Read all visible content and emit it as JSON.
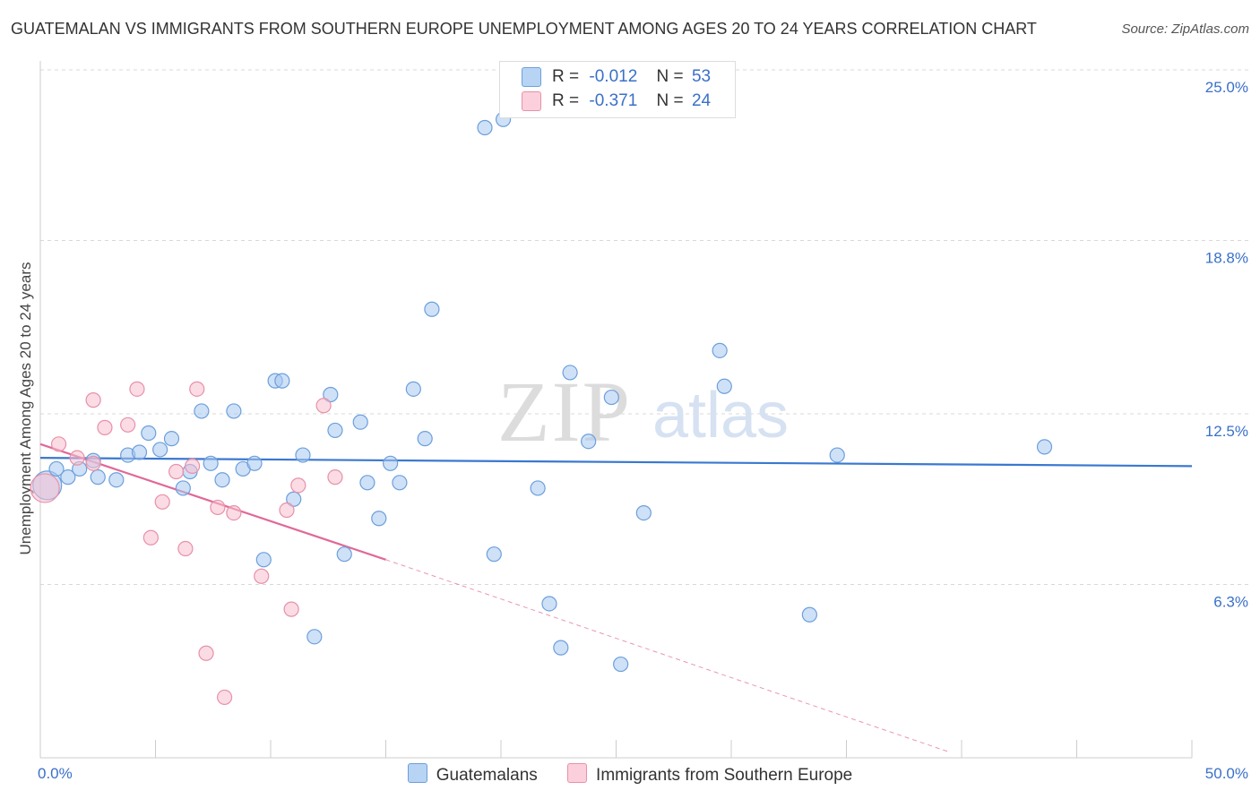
{
  "title": "GUATEMALAN VS IMMIGRANTS FROM SOUTHERN EUROPE UNEMPLOYMENT AMONG AGES 20 TO 24 YEARS CORRELATION CHART",
  "source": "Source: ZipAtlas.com",
  "watermark": {
    "zip": "ZIP",
    "atlas": "atlas"
  },
  "legend": {
    "rows": [
      {
        "r_label": "R =",
        "r_value": "-0.012",
        "n_label": "N =",
        "n_value": "53"
      },
      {
        "r_label": "R =",
        "r_value": "-0.371",
        "n_label": "N =",
        "n_value": "24"
      }
    ]
  },
  "chart_data": {
    "type": "scatter",
    "title": "GUATEMALAN VS IMMIGRANTS FROM SOUTHERN EUROPE UNEMPLOYMENT AMONG AGES 20 TO 24 YEARS CORRELATION CHART",
    "xlabel": "",
    "ylabel": "Unemployment Among Ages 20 to 24 years",
    "xlim": [
      0,
      50
    ],
    "ylim": [
      0,
      25
    ],
    "x_tick_labels": [
      "0.0%",
      "50.0%"
    ],
    "y_ticks": [
      6.3,
      12.5,
      18.8,
      25.0
    ],
    "y_tick_labels": [
      "6.3%",
      "12.5%",
      "18.8%",
      "25.0%"
    ],
    "grid": true,
    "legend_position": "bottom",
    "series": [
      {
        "name": "Guatemalans",
        "color": "#a8c8f0",
        "edge_color": "#6c9fdc",
        "line_color": "#3a78d0",
        "trend": {
          "x": [
            0,
            50
          ],
          "y": [
            10.9,
            10.6
          ],
          "style": "solid"
        },
        "points": [
          [
            0.3,
            9.9
          ],
          [
            0.7,
            10.5
          ],
          [
            1.2,
            10.2
          ],
          [
            1.7,
            10.5
          ],
          [
            2.3,
            10.8
          ],
          [
            2.5,
            10.2
          ],
          [
            3.3,
            10.1
          ],
          [
            3.8,
            11.0
          ],
          [
            4.3,
            11.1
          ],
          [
            4.7,
            11.8
          ],
          [
            5.2,
            11.2
          ],
          [
            5.7,
            11.6
          ],
          [
            6.2,
            9.8
          ],
          [
            6.5,
            10.4
          ],
          [
            7.0,
            12.6
          ],
          [
            7.4,
            10.7
          ],
          [
            7.9,
            10.1
          ],
          [
            8.4,
            12.6
          ],
          [
            8.8,
            10.5
          ],
          [
            9.3,
            10.7
          ],
          [
            9.7,
            7.2
          ],
          [
            10.2,
            13.7
          ],
          [
            10.5,
            13.7
          ],
          [
            11.0,
            9.4
          ],
          [
            11.4,
            11.0
          ],
          [
            11.9,
            4.4
          ],
          [
            12.6,
            13.2
          ],
          [
            12.8,
            11.9
          ],
          [
            13.2,
            7.4
          ],
          [
            13.9,
            12.2
          ],
          [
            14.2,
            10.0
          ],
          [
            14.7,
            8.7
          ],
          [
            15.2,
            10.7
          ],
          [
            15.6,
            10.0
          ],
          [
            16.2,
            13.4
          ],
          [
            16.7,
            11.6
          ],
          [
            17.0,
            16.3
          ],
          [
            19.3,
            22.9
          ],
          [
            19.7,
            7.4
          ],
          [
            20.1,
            23.2
          ],
          [
            21.6,
            9.8
          ],
          [
            22.1,
            5.6
          ],
          [
            22.6,
            4.0
          ],
          [
            23.0,
            14.0
          ],
          [
            23.8,
            11.5
          ],
          [
            24.8,
            13.1
          ],
          [
            25.2,
            3.4
          ],
          [
            26.2,
            8.9
          ],
          [
            29.5,
            14.8
          ],
          [
            29.7,
            13.5
          ],
          [
            33.4,
            5.2
          ],
          [
            34.6,
            11.0
          ],
          [
            43.6,
            11.3
          ]
        ]
      },
      {
        "name": "Immigrants from Southern Europe",
        "color": "#f8c0d0",
        "edge_color": "#e890a8",
        "line_color": "#e06898",
        "trend": {
          "x": [
            0,
            15
          ],
          "y": [
            11.4,
            7.2
          ],
          "style": "solid",
          "extended_x": [
            15,
            39.5
          ],
          "extended_y": [
            7.2,
            0.2
          ],
          "extended_style": "dashed"
        },
        "points": [
          [
            0.2,
            9.8
          ],
          [
            0.8,
            11.4
          ],
          [
            1.6,
            10.9
          ],
          [
            2.3,
            10.7
          ],
          [
            2.3,
            13.0
          ],
          [
            2.8,
            12.0
          ],
          [
            3.8,
            12.1
          ],
          [
            4.2,
            13.4
          ],
          [
            4.8,
            8.0
          ],
          [
            5.3,
            9.3
          ],
          [
            5.9,
            10.4
          ],
          [
            6.3,
            7.6
          ],
          [
            6.6,
            10.6
          ],
          [
            6.8,
            13.4
          ],
          [
            7.2,
            3.8
          ],
          [
            7.7,
            9.1
          ],
          [
            8.0,
            2.2
          ],
          [
            8.4,
            8.9
          ],
          [
            9.6,
            6.6
          ],
          [
            10.7,
            9.0
          ],
          [
            10.9,
            5.4
          ],
          [
            11.2,
            9.9
          ],
          [
            12.3,
            12.8
          ],
          [
            12.8,
            10.2
          ]
        ]
      }
    ]
  },
  "bottom_legend": {
    "items": [
      {
        "label": "Guatemalans",
        "color": "#a8c8f0",
        "edge": "#6c9fdc"
      },
      {
        "label": "Immigrants from Southern Europe",
        "color": "#f8c0d0",
        "edge": "#e890a8"
      }
    ]
  }
}
